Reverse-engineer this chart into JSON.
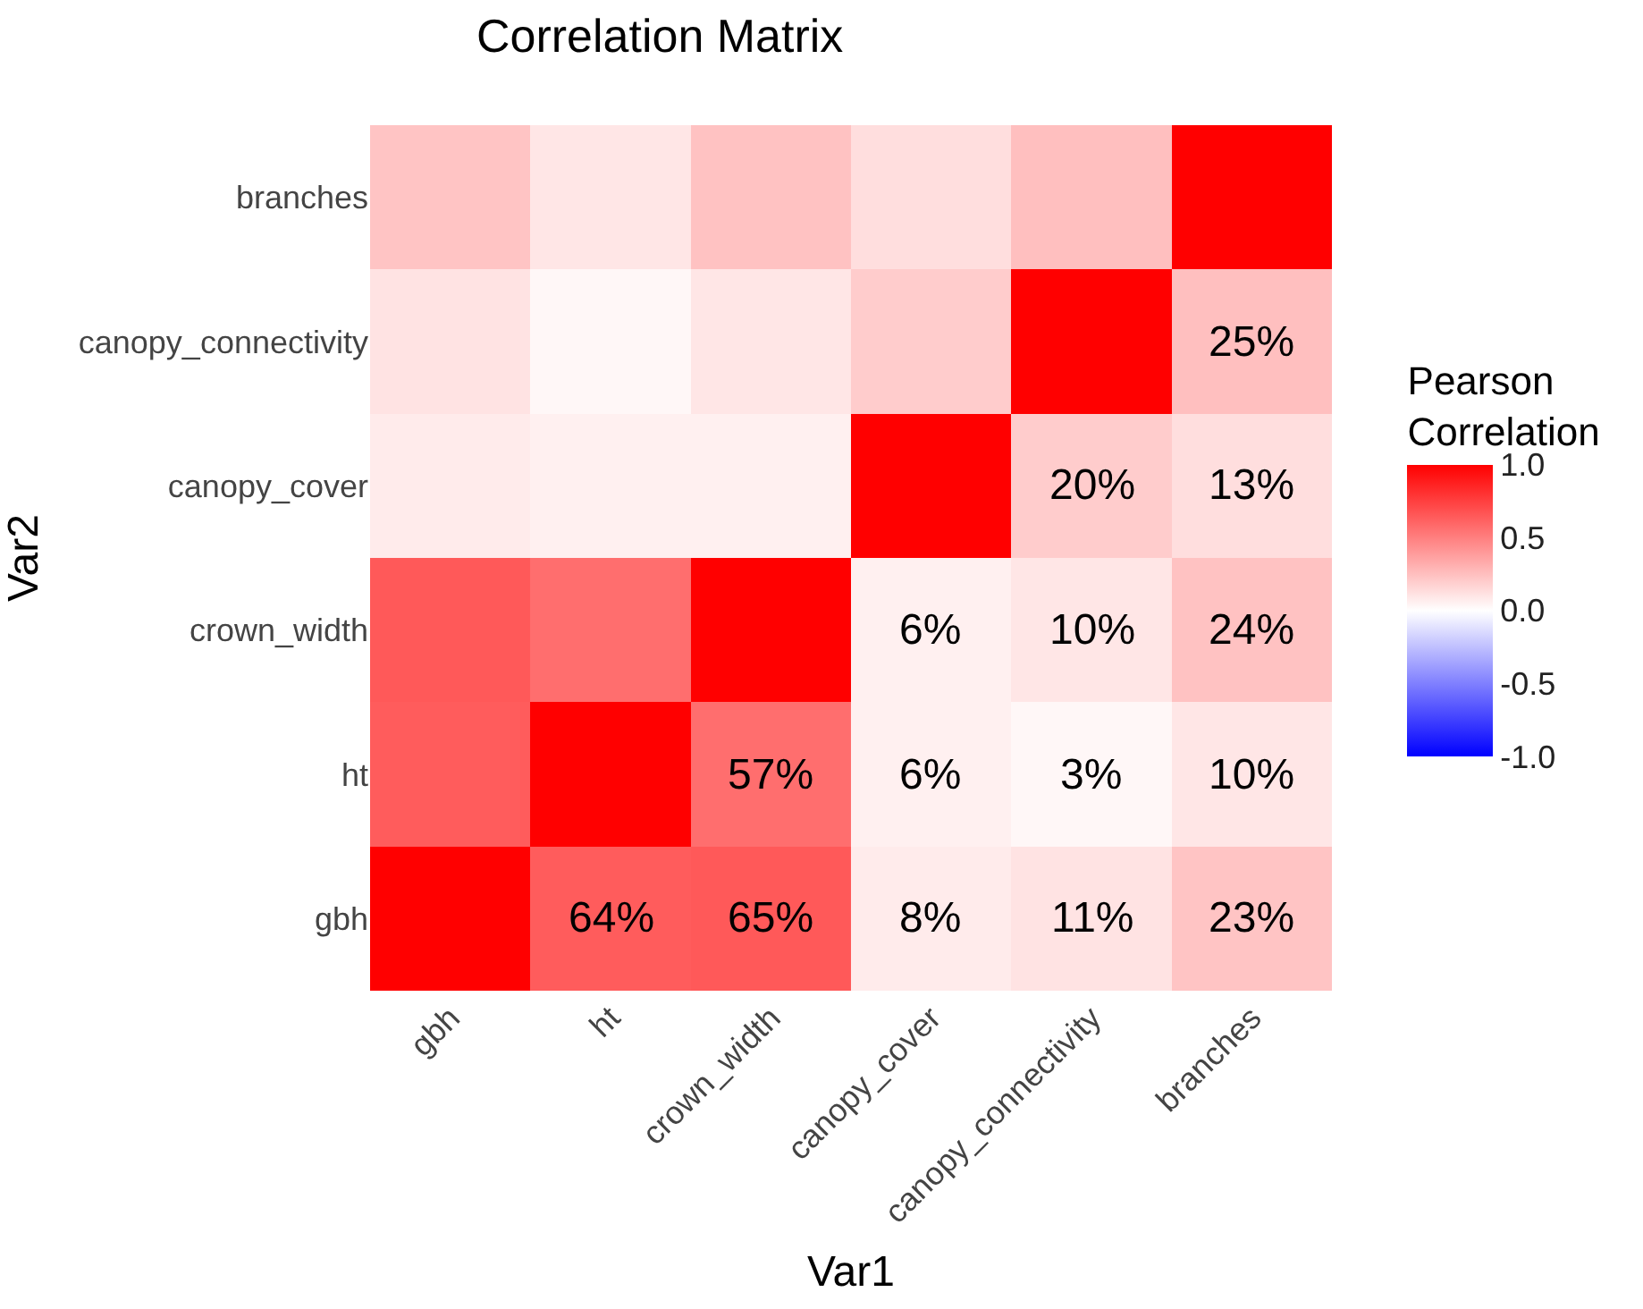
{
  "chart_data": {
    "type": "heatmap",
    "title": "Correlation Matrix",
    "xlabel": "Var1",
    "ylabel": "Var2",
    "clabel": "Pearson\nCorrelation",
    "categories": [
      "gbh",
      "ht",
      "crown_width",
      "canopy_cover",
      "canopy_connectivity",
      "branches"
    ],
    "y_categories": [
      "branches",
      "canopy_connectivity",
      "canopy_cover",
      "crown_width",
      "ht",
      "gbh"
    ],
    "cells": [
      [
        0.23,
        0.1,
        0.24,
        0.13,
        0.25,
        1.0
      ],
      [
        0.11,
        0.03,
        0.1,
        0.2,
        1.0,
        0.25
      ],
      [
        0.08,
        0.06,
        0.06,
        1.0,
        0.2,
        0.13
      ],
      [
        0.65,
        0.57,
        1.0,
        0.06,
        0.1,
        0.24
      ],
      [
        0.64,
        1.0,
        0.57,
        0.06,
        0.03,
        0.1
      ],
      [
        1.0,
        0.64,
        0.65,
        0.08,
        0.11,
        0.23
      ]
    ],
    "cell_labels": [
      [
        null,
        null,
        null,
        null,
        null,
        null
      ],
      [
        null,
        null,
        null,
        null,
        null,
        "25%"
      ],
      [
        null,
        null,
        null,
        null,
        "20%",
        "13%"
      ],
      [
        null,
        null,
        null,
        "6%",
        "10%",
        "24%"
      ],
      [
        null,
        null,
        "57%",
        "6%",
        "3%",
        "10%"
      ],
      [
        null,
        "64%",
        "65%",
        "8%",
        "11%",
        "23%"
      ]
    ],
    "clim": [
      -1,
      1
    ],
    "cticks": [
      {
        "value": -1,
        "label": "-1.0"
      },
      {
        "value": -0.5,
        "label": "-0.5"
      },
      {
        "value": 0,
        "label": "0.0"
      },
      {
        "value": 0.5,
        "label": "0.5"
      },
      {
        "value": 1,
        "label": "1.0"
      }
    ]
  }
}
